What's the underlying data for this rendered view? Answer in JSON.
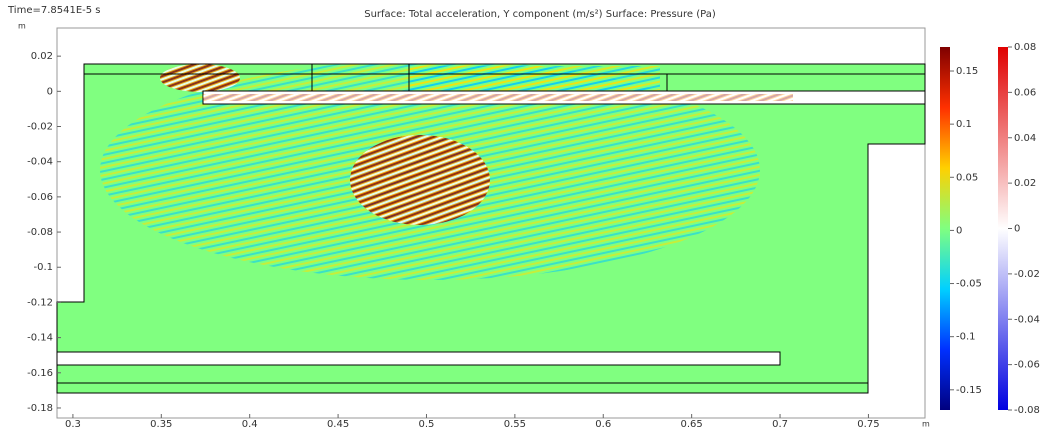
{
  "chart_data": {
    "type": "surface",
    "title": "Surface: Total acceleration, Y component (m/s²)  Surface: Pressure (Pa)",
    "subtitle": "Time=7.8541E-5 s",
    "x_unit": "m",
    "y_unit": "m",
    "xlim": [
      0.291,
      0.782
    ],
    "ylim": [
      -0.1857,
      0.036
    ],
    "xticks": [
      0.3,
      0.35,
      0.4,
      0.45,
      0.5,
      0.55,
      0.6,
      0.65,
      0.7,
      0.75
    ],
    "yticks": [
      0.02,
      0,
      -0.02,
      -0.04,
      -0.06,
      -0.08,
      -0.1,
      -0.12,
      -0.14,
      -0.16,
      -0.18
    ],
    "colorbars": [
      {
        "lim": [
          -0.169,
          0.1726
        ],
        "ticks": [
          0.15,
          0.1,
          0.05,
          0,
          -0.05,
          -0.1,
          -0.15
        ],
        "colors": [
          "#7f0000",
          "#ff3000",
          "#ffd000",
          "#80ff80",
          "#00d0ff",
          "#0030ff",
          "#00007f"
        ]
      },
      {
        "lim": [
          -0.08,
          0.08
        ],
        "ticks": [
          0.08,
          0.06,
          0.04,
          0.02,
          0,
          -0.02,
          -0.04,
          -0.06,
          -0.08
        ],
        "colors": [
          "#e00000",
          "#ffffff",
          "#0000e0"
        ]
      }
    ]
  }
}
